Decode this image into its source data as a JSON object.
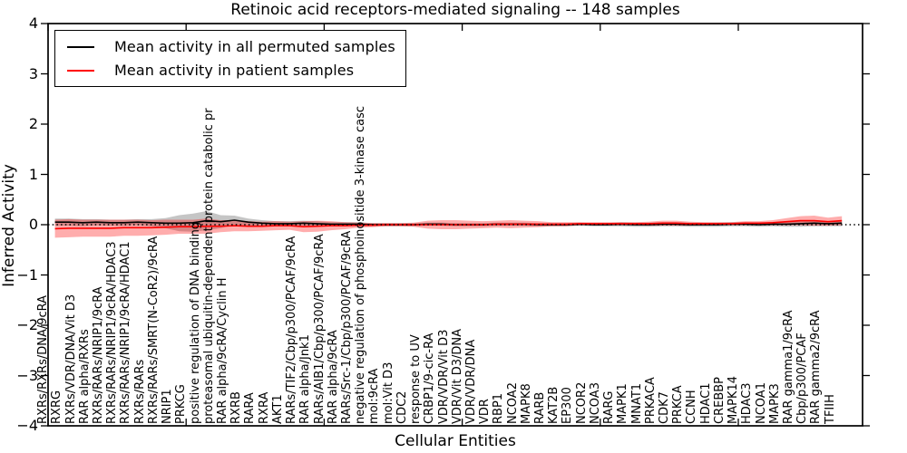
{
  "title": "Retinoic acid receptors-mediated signaling -- 148 samples",
  "legend": {
    "items": [
      {
        "label": "Mean activity in all permuted samples",
        "color": "#000000"
      },
      {
        "label": "Mean activity in patient samples",
        "color": "#ff0000"
      }
    ]
  },
  "chart_data": {
    "type": "line",
    "title": "Retinoic acid receptors-mediated signaling -- 148 samples",
    "xlabel": "Cellular Entities",
    "ylabel": "Inferred Activity",
    "ylim": [
      -4,
      4
    ],
    "yticks": [
      4,
      3,
      2,
      1,
      0,
      -1,
      -2,
      -3,
      -4
    ],
    "ytick_labels": [
      "4",
      "3",
      "2",
      "1",
      "0",
      "−1",
      "−2",
      "−3",
      "−4"
    ],
    "xlim": [
      0,
      59
    ],
    "xticks": [
      0,
      10,
      20,
      30,
      40,
      50
    ],
    "grid": false,
    "legend_position": "upper left",
    "zero_line": true,
    "categories": [
      "RXRs/RXRs/DNA/9cRA",
      "RXRG",
      "RXRs/VDR/DNA/Vit D3",
      "RAR alpha/RXRs",
      "RXRs/RARs/NRIP1/9cRA",
      "RXRs/RARs/NRIP1/9cRA/HDAC3",
      "RXRs/RARs/NRIP1/9cRA/HDAC1",
      "RXRs/RARs",
      "RXRs/RARs/SMRT(N-CoR2)/9cRA",
      "NRIP1",
      "PRKCG",
      "positive regulation of DNA binding",
      "proteasomal ubiquitin-dependent protein catabolic pr",
      "RAR alpha/9cRA/Cyclin H",
      "RXRB",
      "RARA",
      "RXRA",
      "AKT1",
      "RARs/TIF2/Cbp/p300/PCAF/9cRA",
      "RAR alpha/Jnk1",
      "RARs/AIB1/Cbp/p300/PCAF/9cRA",
      "RAR alpha/9cRA",
      "RARs/Src-1/Cbp/p300/PCAF/9cRA",
      "negative regulation of phosphoinositide 3-kinase casc",
      "mol:9cRA",
      "mol:Vit D3",
      "CDC2",
      "response to UV",
      "CRBP1/9-cic-RA",
      "VDR/VDR/Vit D3",
      "VDR/Vit D3/DNA",
      "VDR/VDR/DNA",
      "VDR",
      "RBP1",
      "NCOA2",
      "MAPK8",
      "RARB",
      "KAT2B",
      "EP300",
      "NCOR2",
      "NCOA3",
      "RARG",
      "MAPK1",
      "MNAT1",
      "PRKACA",
      "CDK7",
      "PRKCA",
      "CCNH",
      "HDAC1",
      "CREBBP",
      "MAPK14",
      "HDAC3",
      "NCOA1",
      "MAPK3",
      "RAR gamma1/9cRA",
      "Cbp/p300/PCAF",
      "RAR gamma2/9cRA",
      "TFIIH"
    ],
    "series": [
      {
        "name": "Mean activity in all permuted samples",
        "color": "#000000",
        "values": [
          0.05,
          0.05,
          0.04,
          0.05,
          0.04,
          0.04,
          0.05,
          0.04,
          0.03,
          0.03,
          0.04,
          0.08,
          0.06,
          0.09,
          0.05,
          0.03,
          0.02,
          0.02,
          0.03,
          0.02,
          0.01,
          0.01,
          0.01,
          0.0,
          0.0,
          0.0,
          0.0,
          0.01,
          0.01,
          0.0,
          0.0,
          0.0,
          0.01,
          0.01,
          0.01,
          0.0,
          0.0,
          0.0,
          0.01,
          0.0,
          0.0,
          0.01,
          0.0,
          0.0,
          0.01,
          0.01,
          0.0,
          0.0,
          0.0,
          0.01,
          0.01,
          0.0,
          0.01,
          0.01,
          0.02,
          0.03,
          0.02,
          0.03
        ]
      },
      {
        "name": "Mean activity in patient samples",
        "color": "#ff0000",
        "values": [
          -0.08,
          -0.07,
          -0.07,
          -0.07,
          -0.07,
          -0.06,
          -0.06,
          -0.06,
          -0.05,
          -0.04,
          -0.04,
          -0.03,
          -0.03,
          -0.02,
          -0.03,
          -0.03,
          -0.02,
          -0.02,
          -0.04,
          -0.03,
          -0.02,
          -0.02,
          -0.01,
          -0.01,
          0.0,
          0.0,
          0.0,
          0.0,
          0.0,
          0.0,
          0.0,
          0.0,
          0.01,
          0.01,
          0.01,
          0.01,
          0.01,
          0.01,
          0.02,
          0.02,
          0.02,
          0.02,
          0.02,
          0.02,
          0.03,
          0.03,
          0.02,
          0.02,
          0.02,
          0.02,
          0.03,
          0.03,
          0.04,
          0.06,
          0.08,
          0.08,
          0.06,
          0.08
        ]
      }
    ],
    "bands": [
      {
        "name": "permuted-std-band",
        "series": "Mean activity in all permuted samples",
        "color": "rgba(110,110,110,0.40)",
        "std": [
          0.07,
          0.07,
          0.07,
          0.06,
          0.06,
          0.06,
          0.06,
          0.07,
          0.1,
          0.16,
          0.18,
          0.19,
          0.13,
          0.09,
          0.07,
          0.06,
          0.05,
          0.05,
          0.05,
          0.05,
          0.04,
          0.04,
          0.04,
          0.03,
          0.03,
          0.03,
          0.03,
          0.03,
          0.03,
          0.03,
          0.03,
          0.03,
          0.03,
          0.03,
          0.03,
          0.03,
          0.03,
          0.03,
          0.03,
          0.03,
          0.03,
          0.04,
          0.04,
          0.04,
          0.04,
          0.04,
          0.04,
          0.04,
          0.04,
          0.04,
          0.04,
          0.04,
          0.04,
          0.05,
          0.06,
          0.06,
          0.05,
          0.06
        ]
      },
      {
        "name": "patient-std-band",
        "series": "Mean activity in patient samples",
        "color": "rgba(255,0,0,0.32)",
        "std": [
          0.18,
          0.18,
          0.17,
          0.17,
          0.17,
          0.16,
          0.16,
          0.15,
          0.15,
          0.14,
          0.14,
          0.15,
          0.12,
          0.11,
          0.1,
          0.09,
          0.09,
          0.08,
          0.11,
          0.11,
          0.09,
          0.07,
          0.05,
          0.04,
          0.03,
          0.03,
          0.04,
          0.08,
          0.09,
          0.09,
          0.08,
          0.07,
          0.07,
          0.08,
          0.07,
          0.06,
          0.04,
          0.04,
          0.03,
          0.03,
          0.03,
          0.03,
          0.03,
          0.04,
          0.05,
          0.05,
          0.04,
          0.03,
          0.03,
          0.03,
          0.04,
          0.04,
          0.05,
          0.07,
          0.09,
          0.1,
          0.08,
          0.09
        ]
      }
    ]
  }
}
